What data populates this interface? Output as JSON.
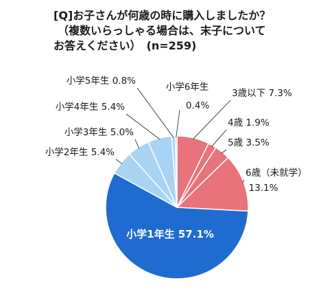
{
  "chart_data": {
    "type": "pie",
    "title_lines": [
      "[Q]お子さんが何歳の時に購入しましたか？",
      "（複数いらっしゃる場合は、末子について",
      "お答えください）　(n=259)"
    ],
    "start": "top",
    "direction": "clockwise",
    "slices": [
      {
        "label": "3歳以下 7.3%",
        "value": 7.3,
        "color": "#e8737a"
      },
      {
        "label": "4歳 1.9%",
        "value": 1.9,
        "color": "#e8737a"
      },
      {
        "label": "5歳 3.5%",
        "value": 3.5,
        "color": "#e8737a"
      },
      {
        "label": "6歳（未就学） 13.1%",
        "value": 13.1,
        "color": "#e8737a"
      },
      {
        "label": "小学1年生 57.1%",
        "value": 57.1,
        "color": "#1f6bd0"
      },
      {
        "label": "小学2年生 5.4%",
        "value": 5.4,
        "color": "#a8d3f5"
      },
      {
        "label": "小学3年生 5.0%",
        "value": 5.0,
        "color": "#a8d3f5"
      },
      {
        "label": "小学4年生 5.4%",
        "value": 5.4,
        "color": "#a8d3f5"
      },
      {
        "label": "小学5年生 0.8%",
        "value": 0.8,
        "color": "#a8d3f5"
      },
      {
        "label": "小学6年生 0.4%",
        "value": 0.4,
        "color": "#a8d3f5"
      }
    ]
  }
}
